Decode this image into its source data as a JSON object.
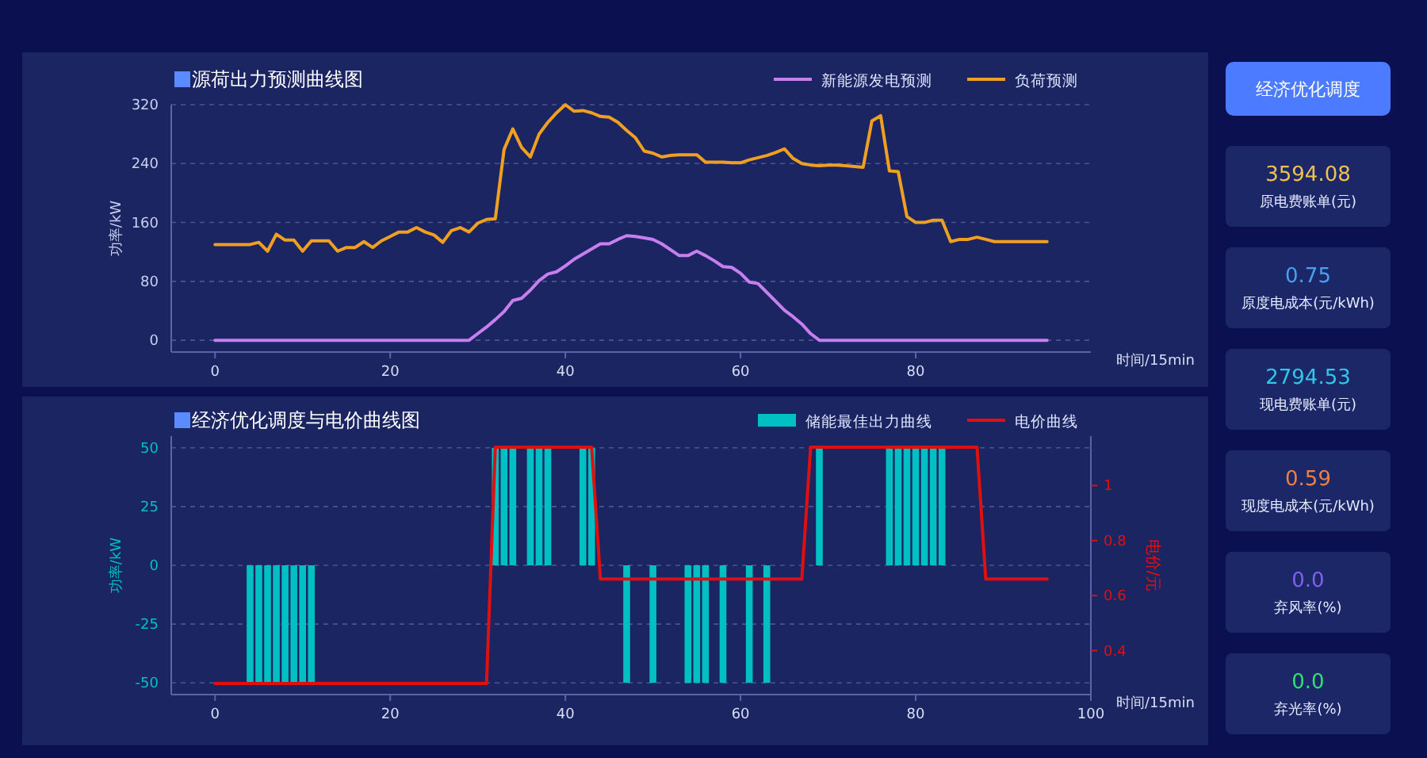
{
  "chart_data": [
    {
      "type": "line",
      "title": "源荷出力预测曲线图",
      "xlabel": "时间/15min",
      "ylabel": "功率/kW",
      "xlim": [
        -5,
        100
      ],
      "ylim": [
        -16,
        320
      ],
      "xticks": [
        0,
        20,
        40,
        60,
        80
      ],
      "yticks": [
        0,
        80,
        160,
        240,
        320
      ],
      "grid": "y",
      "legend": "top right",
      "x": [
        0,
        1,
        2,
        3,
        4,
        5,
        6,
        7,
        8,
        9,
        10,
        11,
        12,
        13,
        14,
        15,
        16,
        17,
        18,
        19,
        20,
        21,
        22,
        23,
        24,
        25,
        26,
        27,
        28,
        29,
        30,
        31,
        32,
        33,
        34,
        35,
        36,
        37,
        38,
        39,
        40,
        41,
        42,
        43,
        44,
        45,
        46,
        47,
        48,
        49,
        50,
        51,
        52,
        53,
        54,
        55,
        56,
        57,
        58,
        59,
        60,
        61,
        62,
        63,
        64,
        65,
        66,
        67,
        68,
        69,
        70,
        71,
        72,
        73,
        74,
        75,
        76,
        77,
        78,
        79,
        80,
        81,
        82,
        83,
        84,
        85,
        86,
        87,
        88,
        89,
        90,
        91,
        92,
        93,
        94,
        95
      ],
      "series": [
        {
          "name": "新能源发电预测",
          "color": "#c77ff0",
          "values": [
            0,
            0,
            0,
            0,
            0,
            0,
            0,
            0,
            0,
            0,
            0,
            0,
            0,
            0,
            0,
            0,
            0,
            0,
            0,
            0,
            0,
            0,
            0,
            0,
            0,
            0,
            0,
            0,
            0,
            0,
            9,
            18,
            28,
            39,
            54,
            57,
            68,
            81,
            90,
            93,
            101,
            110,
            117,
            124,
            131,
            131,
            137,
            142,
            141,
            139,
            137,
            131,
            123,
            115,
            115,
            121,
            115,
            108,
            100,
            99,
            91,
            79,
            77,
            65,
            53,
            41,
            32,
            22,
            9,
            0,
            0,
            0,
            0,
            0,
            0,
            0,
            0,
            0,
            0,
            0,
            0,
            0,
            0,
            0,
            0,
            0,
            0,
            0,
            0,
            0,
            0,
            0,
            0,
            0,
            0,
            0
          ]
        },
        {
          "name": "负荷预测",
          "color": "#f0a020",
          "values": [
            130,
            130,
            130,
            130,
            130,
            133,
            121,
            144,
            136,
            136,
            121,
            135,
            135,
            135,
            121,
            126,
            126,
            134,
            126,
            135,
            141,
            147,
            147,
            153,
            147,
            143,
            133,
            149,
            153,
            147,
            159,
            164,
            165,
            259,
            287,
            262,
            249,
            280,
            296,
            309,
            320,
            311,
            312,
            309,
            304,
            303,
            296,
            285,
            275,
            257,
            254,
            249,
            251,
            252,
            252,
            252,
            242,
            242,
            242,
            241,
            241,
            245,
            248,
            251,
            255,
            260,
            247,
            240,
            238,
            237,
            238,
            238,
            237,
            236,
            235,
            298,
            305,
            230,
            229,
            168,
            160,
            160,
            163,
            163,
            134,
            137,
            137,
            140,
            137,
            134,
            134,
            134,
            134,
            134,
            134,
            134
          ]
        }
      ]
    },
    {
      "type": "bar",
      "title": "经济优化调度与电价曲线图",
      "xlabel": "时间/15min",
      "ylabel": "功率/kW",
      "y2label": "电价/元",
      "xlim": [
        -5,
        100
      ],
      "ylim": [
        -55,
        55
      ],
      "y2lim": [
        0.24,
        1.18
      ],
      "xticks": [
        0,
        20,
        40,
        60,
        80,
        100
      ],
      "yticks": [
        -50,
        -25,
        0,
        25,
        50
      ],
      "y2ticks": [
        0.4,
        0.6,
        0.8,
        1.0
      ],
      "grid": "y",
      "legend": "top right",
      "x": [
        0,
        1,
        2,
        3,
        4,
        5,
        6,
        7,
        8,
        9,
        10,
        11,
        12,
        13,
        14,
        15,
        16,
        17,
        18,
        19,
        20,
        21,
        22,
        23,
        24,
        25,
        26,
        27,
        28,
        29,
        30,
        31,
        32,
        33,
        34,
        35,
        36,
        37,
        38,
        39,
        40,
        41,
        42,
        43,
        44,
        45,
        46,
        47,
        48,
        49,
        50,
        51,
        52,
        53,
        54,
        55,
        56,
        57,
        58,
        59,
        60,
        61,
        62,
        63,
        64,
        65,
        66,
        67,
        68,
        69,
        70,
        71,
        72,
        73,
        74,
        75,
        76,
        77,
        78,
        79,
        80,
        81,
        82,
        83,
        84,
        85,
        86,
        87,
        88,
        89,
        90,
        91,
        92,
        93,
        94,
        95
      ],
      "series": [
        {
          "name": "储能最佳出力曲线",
          "type": "bar",
          "color": "#00c0c4",
          "values": [
            0,
            0,
            0,
            0,
            -50,
            -50,
            -50,
            -50,
            -50,
            -50,
            -50,
            -50,
            0,
            0,
            0,
            0,
            0,
            0,
            0,
            0,
            0,
            0,
            0,
            0,
            0,
            0,
            0,
            0,
            0,
            0,
            0,
            0,
            50,
            50,
            50,
            0,
            50,
            50,
            50,
            0,
            0,
            0,
            50,
            50,
            0,
            0,
            0,
            -50,
            0,
            0,
            -50,
            0,
            0,
            0,
            -50,
            -50,
            -50,
            0,
            -50,
            0,
            0,
            -50,
            0,
            -50,
            0,
            0,
            0,
            0,
            0,
            50,
            0,
            0,
            0,
            0,
            0,
            0,
            0,
            50,
            50,
            50,
            50,
            50,
            50,
            50,
            0,
            0,
            0,
            0,
            0,
            0,
            0,
            0,
            0,
            0,
            0,
            0
          ]
        },
        {
          "name": "电价曲线",
          "type": "line",
          "axis": "y2",
          "color": "#e01010",
          "values": [
            0.28,
            0.28,
            0.28,
            0.28,
            0.28,
            0.28,
            0.28,
            0.28,
            0.28,
            0.28,
            0.28,
            0.28,
            0.28,
            0.28,
            0.28,
            0.28,
            0.28,
            0.28,
            0.28,
            0.28,
            0.28,
            0.28,
            0.28,
            0.28,
            0.28,
            0.28,
            0.28,
            0.28,
            0.28,
            0.28,
            0.28,
            0.28,
            1.14,
            1.14,
            1.14,
            1.14,
            1.14,
            1.14,
            1.14,
            1.14,
            1.14,
            1.14,
            1.14,
            1.14,
            0.66,
            0.66,
            0.66,
            0.66,
            0.66,
            0.66,
            0.66,
            0.66,
            0.66,
            0.66,
            0.66,
            0.66,
            0.66,
            0.66,
            0.66,
            0.66,
            0.66,
            0.66,
            0.66,
            0.66,
            0.66,
            0.66,
            0.66,
            0.66,
            1.14,
            1.14,
            1.14,
            1.14,
            1.14,
            1.14,
            1.14,
            1.14,
            1.14,
            1.14,
            1.14,
            1.14,
            1.14,
            1.14,
            1.14,
            1.14,
            1.14,
            1.14,
            1.14,
            1.14,
            0.66,
            0.66,
            0.66,
            0.66,
            0.66,
            0.66,
            0.66,
            0.66
          ]
        }
      ]
    },
    {
      "type": "other",
      "title": "经济优化调度",
      "categories": [
        "原电费账单(元)",
        "原度电成本(元/kWh)",
        "现电费账单(元)",
        "现度电成本(元/kWh)",
        "弃风率(%)",
        "弃光率(%)"
      ],
      "value_labels": [
        "3594.08",
        "0.75",
        "2794.53",
        "0.59",
        "0.0",
        "0.0"
      ]
    }
  ]
}
